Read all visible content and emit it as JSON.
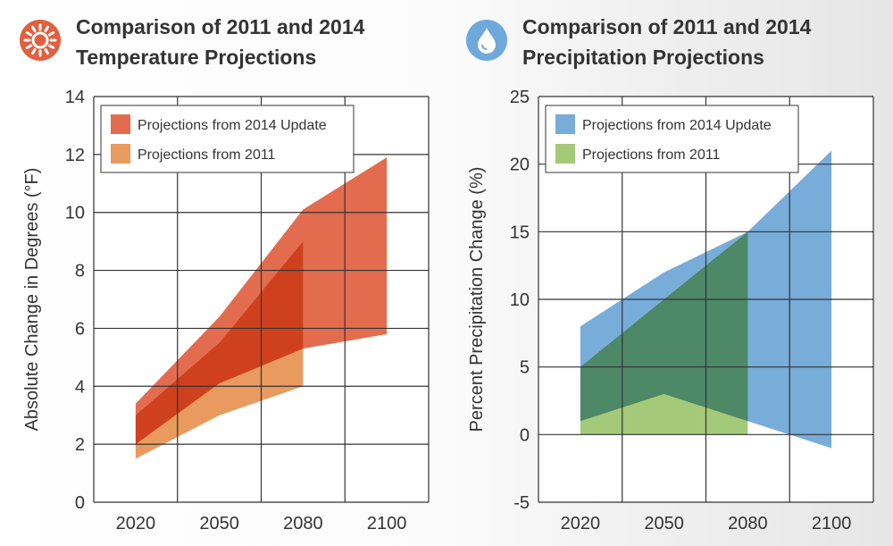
{
  "chart_data": [
    {
      "type": "area",
      "title_lines": [
        "Comparison of 2011 and 2014",
        "Temperature Projections"
      ],
      "icon": "sun-icon",
      "icon_color": "#e0603f",
      "xlabel": "",
      "ylabel": "Absolute Change in Degrees (°F)",
      "categories": [
        "2020",
        "2050",
        "2080",
        "2100"
      ],
      "ylim": [
        0,
        14
      ],
      "yticks": [
        0,
        2,
        4,
        6,
        8,
        10,
        12,
        14
      ],
      "grid": true,
      "legend_position": "top-left",
      "series": [
        {
          "name": "Projections from 2011",
          "color": "#e99a5e",
          "upper": [
            3.0,
            5.5,
            9.0,
            null
          ],
          "lower": [
            1.5,
            3.0,
            4.0,
            null
          ]
        },
        {
          "name": "Projections from 2014 Update",
          "color": "#e36c4f",
          "upper": [
            3.4,
            6.4,
            10.1,
            11.9
          ],
          "lower": [
            2.0,
            4.1,
            5.3,
            5.8
          ]
        }
      ],
      "legend_order": [
        1,
        0
      ]
    },
    {
      "type": "area",
      "title_lines": [
        "Comparison of 2011 and 2014",
        "Precipitation Projections"
      ],
      "icon": "water-drop-icon",
      "icon_color": "#6fa9dc",
      "xlabel": "",
      "ylabel": "Percent Precipitation Change (%)",
      "categories": [
        "2020",
        "2050",
        "2080",
        "2100"
      ],
      "ylim": [
        -5,
        25
      ],
      "yticks": [
        -5,
        0,
        5,
        10,
        15,
        20,
        25
      ],
      "grid": true,
      "legend_position": "top-left",
      "series": [
        {
          "name": "Projections from 2011",
          "color": "#a4c979",
          "upper": [
            5,
            10,
            15,
            null
          ],
          "lower": [
            0,
            0,
            0,
            null
          ]
        },
        {
          "name": "Projections from 2014 Update",
          "color": "#78acd9",
          "upper": [
            8,
            12,
            15,
            21
          ],
          "lower": [
            1,
            3,
            1,
            -1
          ]
        }
      ],
      "legend_order": [
        1,
        0
      ]
    }
  ]
}
